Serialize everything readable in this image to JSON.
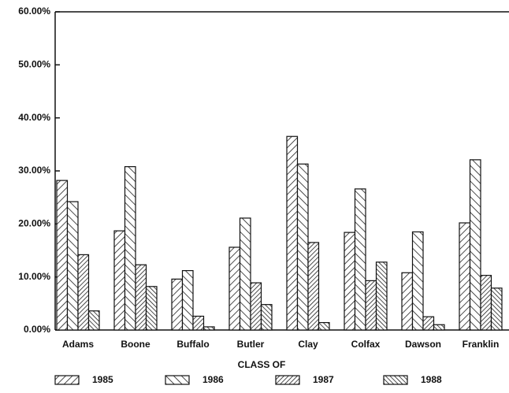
{
  "chart_data": {
    "type": "bar",
    "x_label": "CLASS OF",
    "categories": [
      "Adams",
      "Boone",
      "Buffalo",
      "Butler",
      "Clay",
      "Colfax",
      "Dawson",
      "Franklin"
    ],
    "series": [
      {
        "name": "1985",
        "color": "#111111",
        "values": [
          28.2,
          18.7,
          9.6,
          15.6,
          36.5,
          18.4,
          10.8,
          20.2
        ]
      },
      {
        "name": "1986",
        "color": "#111111",
        "values": [
          24.2,
          30.8,
          11.2,
          21.1,
          31.3,
          26.6,
          18.5,
          32.1
        ]
      },
      {
        "name": "1987",
        "color": "#111111",
        "values": [
          14.2,
          12.3,
          2.6,
          8.9,
          16.5,
          9.3,
          2.5,
          10.3
        ]
      },
      {
        "name": "1988",
        "color": "#111111",
        "values": [
          3.6,
          8.2,
          0.6,
          4.8,
          1.4,
          12.8,
          1.0,
          7.9
        ]
      }
    ],
    "ylim": [
      0,
      60
    ],
    "yticks": [
      {
        "value": 0,
        "label": "0.00%"
      },
      {
        "value": 10,
        "label": "10.00%"
      },
      {
        "value": 20,
        "label": "20.00%"
      },
      {
        "value": 30,
        "label": "30.00%"
      },
      {
        "value": 40,
        "label": "40.00%"
      },
      {
        "value": 50,
        "label": "50.00%"
      },
      {
        "value": 60,
        "label": "60.00%"
      }
    ],
    "grid": false,
    "legend": "bottom"
  }
}
